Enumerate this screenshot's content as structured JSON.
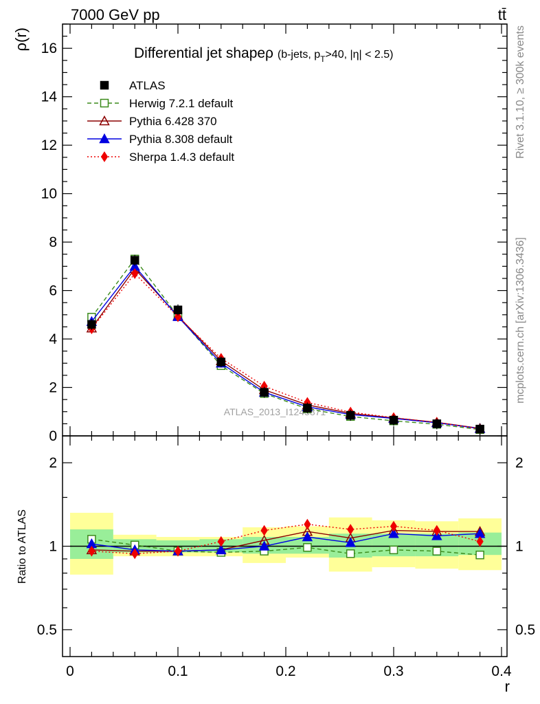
{
  "header": {
    "energy_label": "7000 GeV pp",
    "process_label": "tt̄",
    "rivet_note": "Rivet 3.1.10, ≥ 300k events",
    "mcplots_note": "mcplots.cern.ch [arXiv:1306.3436]",
    "analysis_watermark": "ATLAS_2013_I1243871"
  },
  "chart_data": [
    {
      "type": "line",
      "panel": "main",
      "title_main": "Differential jet shapeρ",
      "title_cut": "(b-jets, p",
      "title_sub": "T",
      "title_cut_tail": ">40, |η| < 2.5)",
      "xlabel": "r",
      "ylabel": "ρ(r)",
      "xlim": [
        0,
        0.4
      ],
      "ylim": [
        0,
        17
      ],
      "yticks": [
        0,
        2,
        4,
        6,
        8,
        10,
        12,
        14,
        16
      ],
      "yticklabels": [
        "0",
        "2",
        "4",
        "6",
        "8",
        "10",
        "12",
        "14",
        "16"
      ],
      "x": [
        0.02,
        0.06,
        0.1,
        0.14,
        0.18,
        0.22,
        0.26,
        0.3,
        0.34,
        0.38
      ],
      "series": [
        {
          "name": "ATLAS",
          "color": "#000000",
          "marker": "square-filled",
          "dash": "none",
          "values": [
            4.6,
            7.25,
            5.2,
            3.05,
            1.8,
            1.15,
            0.85,
            0.65,
            0.5,
            0.28
          ]
        },
        {
          "name": "Herwig 7.2.1 default",
          "color": "#3a8a1a",
          "marker": "square-open",
          "dash": "dashed",
          "values": [
            4.9,
            7.3,
            4.95,
            2.9,
            1.75,
            1.12,
            0.8,
            0.62,
            0.48,
            0.26
          ]
        },
        {
          "name": "Pythia 6.428 370",
          "color": "#8b0000",
          "marker": "triangle-open",
          "dash": "solid",
          "values": [
            4.45,
            6.9,
            4.95,
            3.1,
            1.9,
            1.28,
            0.93,
            0.74,
            0.56,
            0.31
          ]
        },
        {
          "name": "Pythia 8.308 default",
          "color": "#0000e0",
          "marker": "triangle-filled",
          "dash": "solid",
          "values": [
            4.72,
            7.0,
            4.92,
            3.0,
            1.8,
            1.2,
            0.88,
            0.72,
            0.54,
            0.3
          ]
        },
        {
          "name": "Sherpa 1.4.3 default",
          "color": "#ee0000",
          "marker": "diamond-filled",
          "dash": "dotted",
          "values": [
            4.42,
            6.7,
            4.92,
            3.2,
            2.05,
            1.38,
            0.98,
            0.75,
            0.56,
            0.29
          ]
        }
      ]
    },
    {
      "type": "line",
      "panel": "ratio",
      "xlabel": "r",
      "ylabel": "Ratio to ATLAS",
      "xlim": [
        0,
        0.4
      ],
      "ylim": [
        0.4,
        2.5
      ],
      "yscale": "log",
      "yticks": [
        0.5,
        1,
        2
      ],
      "yticklabels": [
        "0.5",
        "1",
        "2"
      ],
      "xticks": [
        0,
        0.1,
        0.2,
        0.3,
        0.4
      ],
      "xticklabels": [
        "0",
        "0.1",
        "0.2",
        "0.3",
        "0.4"
      ],
      "x": [
        0.02,
        0.06,
        0.1,
        0.14,
        0.18,
        0.22,
        0.26,
        0.3,
        0.34,
        0.38
      ],
      "uncertainty_bands": {
        "inner_color": "#99ee99",
        "outer_color": "#ffff99",
        "bins": [
          {
            "lo": 0.0,
            "hi": 0.04,
            "inner": [
              0.9,
              1.15
            ],
            "outer": [
              0.79,
              1.32
            ]
          },
          {
            "lo": 0.04,
            "hi": 0.08,
            "inner": [
              0.95,
              1.06
            ],
            "outer": [
              0.92,
              1.1
            ]
          },
          {
            "lo": 0.08,
            "hi": 0.12,
            "inner": [
              0.95,
              1.05
            ],
            "outer": [
              0.92,
              1.08
            ]
          },
          {
            "lo": 0.12,
            "hi": 0.16,
            "inner": [
              0.95,
              1.06
            ],
            "outer": [
              0.92,
              1.08
            ]
          },
          {
            "lo": 0.16,
            "hi": 0.2,
            "inner": [
              0.94,
              1.08
            ],
            "outer": [
              0.87,
              1.17
            ]
          },
          {
            "lo": 0.2,
            "hi": 0.24,
            "inner": [
              0.94,
              1.08
            ],
            "outer": [
              0.91,
              1.18
            ]
          },
          {
            "lo": 0.24,
            "hi": 0.28,
            "inner": [
              0.91,
              1.11
            ],
            "outer": [
              0.81,
              1.27
            ]
          },
          {
            "lo": 0.28,
            "hi": 0.32,
            "inner": [
              0.92,
              1.11
            ],
            "outer": [
              0.84,
              1.24
            ]
          },
          {
            "lo": 0.32,
            "hi": 0.36,
            "inner": [
              0.92,
              1.11
            ],
            "outer": [
              0.83,
              1.23
            ]
          },
          {
            "lo": 0.36,
            "hi": 0.4,
            "inner": [
              0.93,
              1.12
            ],
            "outer": [
              0.82,
              1.26
            ]
          }
        ]
      },
      "series": [
        {
          "name": "Herwig 7.2.1 default",
          "color": "#3a8a1a",
          "marker": "square-open",
          "dash": "dashed",
          "values": [
            1.06,
            1.01,
            0.96,
            0.95,
            0.96,
            0.99,
            0.94,
            0.97,
            0.96,
            0.93
          ]
        },
        {
          "name": "Pythia 6.428 370",
          "color": "#8b0000",
          "marker": "triangle-open",
          "dash": "solid",
          "values": [
            0.97,
            0.96,
            0.96,
            0.97,
            1.05,
            1.13,
            1.07,
            1.14,
            1.13,
            1.13
          ]
        },
        {
          "name": "Pythia 8.308 default",
          "color": "#0000e0",
          "marker": "triangle-filled",
          "dash": "solid",
          "values": [
            1.02,
            0.97,
            0.96,
            0.97,
            1.0,
            1.08,
            1.03,
            1.11,
            1.09,
            1.11
          ]
        },
        {
          "name": "Sherpa 1.4.3 default",
          "color": "#ee0000",
          "marker": "diamond-filled",
          "dash": "dotted",
          "values": [
            0.96,
            0.94,
            0.96,
            1.04,
            1.14,
            1.2,
            1.15,
            1.18,
            1.14,
            1.04
          ]
        }
      ]
    }
  ]
}
